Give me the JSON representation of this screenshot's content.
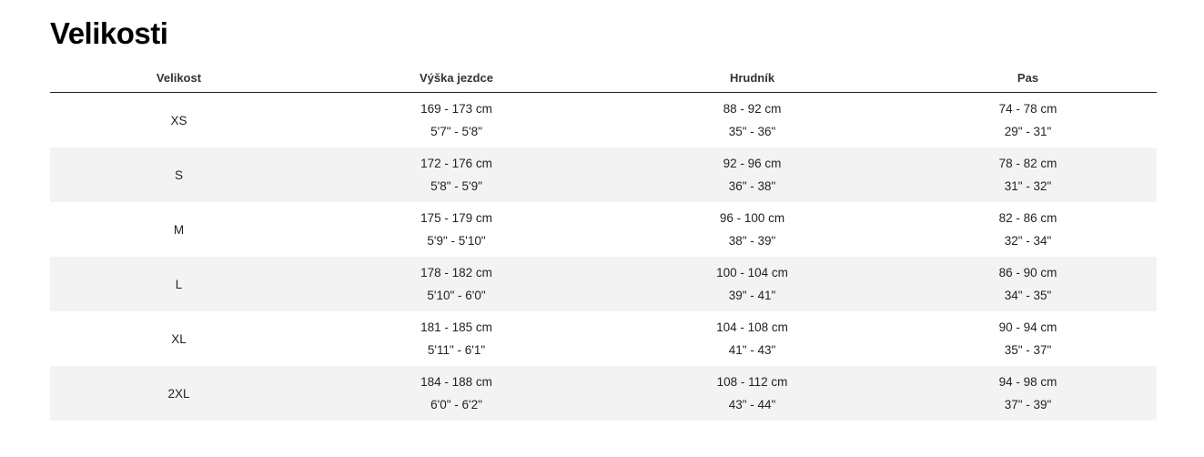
{
  "title": "Velikosti",
  "headers": [
    "Velikost",
    "Výška jezdce",
    "Hrudník",
    "Pas"
  ],
  "rows": [
    {
      "size": "XS",
      "height": [
        "169 - 173 cm",
        "5'7\" - 5'8\""
      ],
      "chest": [
        "88 - 92 cm",
        "35\" - 36\""
      ],
      "waist": [
        "74 - 78 cm",
        "29\" - 31\""
      ]
    },
    {
      "size": "S",
      "height": [
        "172 - 176 cm",
        "5'8\" - 5'9\""
      ],
      "chest": [
        "92 - 96 cm",
        "36\" - 38\""
      ],
      "waist": [
        "78 - 82 cm",
        "31\" - 32\""
      ]
    },
    {
      "size": "M",
      "height": [
        "175 - 179 cm",
        "5'9\" - 5'10\""
      ],
      "chest": [
        "96 - 100 cm",
        "38\" - 39\""
      ],
      "waist": [
        "82 - 86 cm",
        "32\" - 34\""
      ]
    },
    {
      "size": "L",
      "height": [
        "178 - 182 cm",
        "5'10\" - 6'0\""
      ],
      "chest": [
        "100 - 104 cm",
        "39\" - 41\""
      ],
      "waist": [
        "86 - 90 cm",
        "34\" - 35\""
      ]
    },
    {
      "size": "XL",
      "height": [
        "181 - 185 cm",
        "5'11\" - 6'1\""
      ],
      "chest": [
        "104 - 108 cm",
        "41\" - 43\""
      ],
      "waist": [
        "90 - 94 cm",
        "35\" - 37\""
      ]
    },
    {
      "size": "2XL",
      "height": [
        "184 - 188 cm",
        "6'0\" - 6'2\""
      ],
      "chest": [
        "108 - 112 cm",
        "43\" - 44\""
      ],
      "waist": [
        "94 - 98 cm",
        "37\" - 39\""
      ]
    }
  ]
}
